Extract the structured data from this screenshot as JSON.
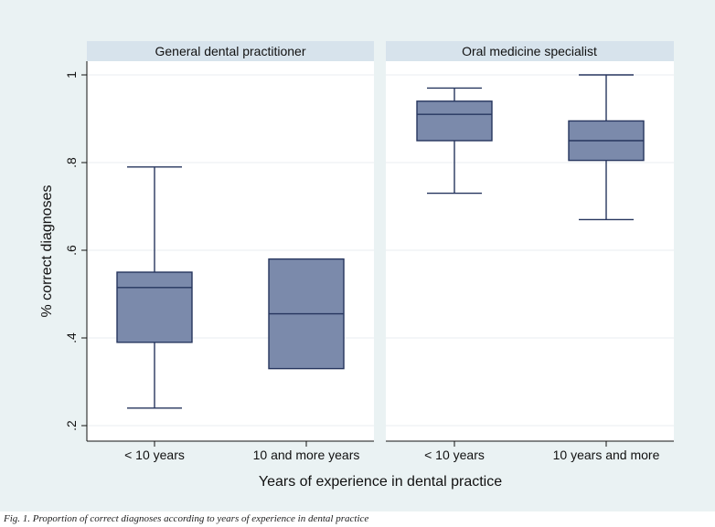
{
  "chart_data": {
    "type": "boxplot",
    "ylabel": "% correct diagnoses",
    "xlabel": "Years of experience in dental practice",
    "ylim": [
      0.2,
      1.0
    ],
    "yticks": [
      0.2,
      0.4,
      0.6,
      0.8,
      1.0
    ],
    "ytick_labels": [
      ".2",
      ".4",
      ".6",
      ".8",
      "1"
    ],
    "grid": true,
    "colors": {
      "background": "#eaf2f3",
      "panel": "#ffffff",
      "strip": "#d7e3ec",
      "box_fill": "#7b8aab",
      "box_stroke": "#26355e",
      "grid": "#e8eef0",
      "text": "#111111"
    },
    "panels": [
      {
        "title": "General dental practitioner",
        "categories": [
          "< 10 years",
          "10 and more years"
        ],
        "boxes": [
          {
            "min": 0.24,
            "q1": 0.39,
            "median": 0.515,
            "q3": 0.55,
            "max": 0.79
          },
          {
            "min": 0.33,
            "q1": 0.33,
            "median": 0.455,
            "q3": 0.58,
            "max": 0.58
          }
        ]
      },
      {
        "title": "Oral medicine specialist",
        "categories": [
          "< 10 years",
          "10 years and more"
        ],
        "boxes": [
          {
            "min": 0.73,
            "q1": 0.85,
            "median": 0.91,
            "q3": 0.94,
            "max": 0.97
          },
          {
            "min": 0.67,
            "q1": 0.805,
            "median": 0.85,
            "q3": 0.895,
            "max": 1.0
          }
        ]
      }
    ]
  },
  "caption": "Fig. 1. Proportion of correct diagnoses according to years of experience in dental practice"
}
